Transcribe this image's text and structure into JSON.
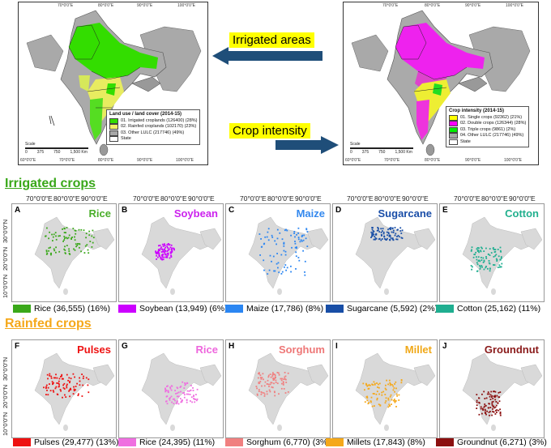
{
  "map1": {
    "legend_title": "Land use / land cover (2014-15)",
    "legend": [
      {
        "label": "01. Irrigated croplands (126400) (28%)",
        "color": "#33dd00"
      },
      {
        "label": "02. Rainfed croplands (102170) (23%)",
        "color": "#f2f266"
      },
      {
        "label": "03. Other LULC (217746) (49%)",
        "color": "#a8a8a8"
      },
      {
        "label": "State",
        "color": "#ffffff"
      }
    ],
    "scale": {
      "label": "Scale",
      "ticks": [
        "0",
        "375",
        "750",
        "1,500 Km"
      ]
    },
    "top_ticks": [
      "70°0'0\"E",
      "80°0'0\"E",
      "90°0'0\"E",
      "100°0'0\"E"
    ],
    "bottom_ticks": [
      "60°0'0\"E",
      "70°0'0\"E",
      "80°0'0\"E",
      "90°0'0\"E",
      "100°0'0\"E"
    ]
  },
  "map2": {
    "legend_title": "Crop intensity (2014-15)",
    "legend": [
      {
        "label": "01. Single crops (92362) (21%)",
        "color": "#ffff00"
      },
      {
        "label": "02. Double crops (126344) (28%)",
        "color": "#ff00ff"
      },
      {
        "label": "03. Triple crops (9861) (2%)",
        "color": "#00ee00"
      },
      {
        "label": "04. Other LULC (217746) (49%)",
        "color": "#a8a8a8"
      },
      {
        "label": "State",
        "color": "#ffffff"
      }
    ],
    "scale": {
      "label": "Scale",
      "ticks": [
        "0",
        "375",
        "750",
        "1,500 Km"
      ]
    },
    "top_ticks": [
      "70°0'0\"E",
      "80°0'0\"E",
      "90°0'0\"E",
      "100°0'0\"E"
    ],
    "bottom_ticks": [
      "60°0'0\"E",
      "70°0'0\"E",
      "80°0'0\"E",
      "90°0'0\"E",
      "100°0'0\"E"
    ]
  },
  "callouts": {
    "irrigated_areas": "Irrigated areas",
    "crop_intensity": "Crop intensity"
  },
  "sections": {
    "irrigated": "Irrigated crops",
    "rainfed": "Rainfed crops"
  },
  "top_lon_labels": [
    "70°0'0\"E",
    "80°0'0\"E",
    "90°0'0\"E"
  ],
  "side_lat_labels": [
    "30°0'0\"N",
    "20°0'0\"N",
    "10°0'0\"N"
  ],
  "irrigated_panels": [
    {
      "letter": "A",
      "crop": "Rice",
      "crop_color": "#4aae2a",
      "legend": "Rice (36,555) (16%)",
      "swatch": "#3aa81a"
    },
    {
      "letter": "B",
      "crop": "Soybean",
      "crop_color": "#cc22ee",
      "legend": "Soybean (13,949) (6%)",
      "swatch": "#cc00ff"
    },
    {
      "letter": "C",
      "crop": "Maize",
      "crop_color": "#3388ee",
      "legend": "Maize (17,786) (8%)",
      "swatch": "#2b86f2"
    },
    {
      "letter": "D",
      "crop": "Sugarcane",
      "crop_color": "#1a4ea8",
      "legend": "Sugarcane (5,592) (2%)",
      "swatch": "#184ea6"
    },
    {
      "letter": "E",
      "crop": "Cotton",
      "crop_color": "#22b08e",
      "legend": "Cotton (25,162) (11%)",
      "swatch": "#1fae90"
    }
  ],
  "rainfed_panels": [
    {
      "letter": "F",
      "crop": "Pulses",
      "crop_color": "#ee1111",
      "legend": "Pulses (29,477) (13%)",
      "swatch": "#ee1111"
    },
    {
      "letter": "G",
      "crop": "Rice",
      "crop_color": "#ee66dd",
      "legend": "Rice (24,395) (11%)",
      "swatch": "#ef6fe0"
    },
    {
      "letter": "H",
      "crop": "Sorghum",
      "crop_color": "#ee7777",
      "legend": "Sorghum (6,770) (3%)",
      "swatch": "#f08080"
    },
    {
      "letter": "I",
      "crop": "Millet",
      "crop_color": "#f0a818",
      "legend": "Millets (17,843) (8%)",
      "swatch": "#f5a81a"
    },
    {
      "letter": "J",
      "crop": "Groundnut",
      "crop_color": "#8a1a1a",
      "legend": "Groundnut (6,271) (3%)",
      "swatch": "#8b1010"
    }
  ]
}
